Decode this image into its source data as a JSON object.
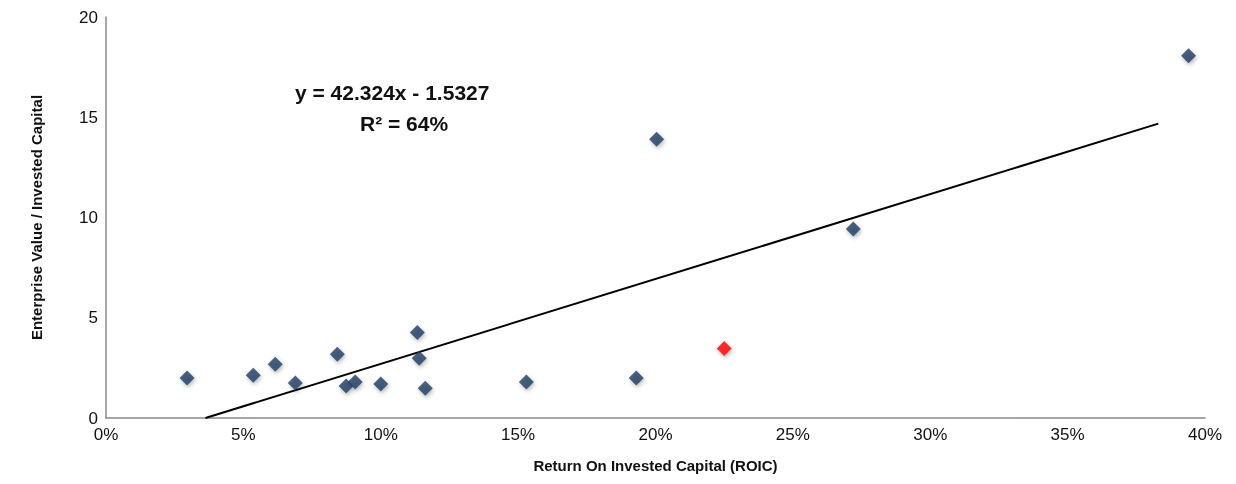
{
  "chart_data": {
    "type": "scatter",
    "xlabel": "Return On Invested Capital (ROIC)",
    "ylabel": "Enterprise Value / Invested Capital",
    "annotations": [
      "y = 42.324x - 1.5327",
      "R² = 64%"
    ],
    "xlim": [
      0,
      0.4
    ],
    "xticks": [
      {
        "value": 0,
        "label": "0%"
      },
      {
        "value": 0.05,
        "label": "5%"
      },
      {
        "value": 0.1,
        "label": "10%"
      },
      {
        "value": 0.15,
        "label": "15%"
      },
      {
        "value": 0.2,
        "label": "20%"
      },
      {
        "value": 0.25,
        "label": "25%"
      },
      {
        "value": 0.3,
        "label": "30%"
      },
      {
        "value": 0.35,
        "label": "35%"
      },
      {
        "value": 0.4,
        "label": "40%"
      }
    ],
    "ylim": [
      0,
      20
    ],
    "yticks": [
      0,
      5,
      10,
      15,
      20
    ],
    "grid": false,
    "marker": "diamond",
    "series": [
      {
        "color": "#1f3b63",
        "x": [
          0.0295,
          0.0536,
          0.0616,
          0.0689,
          0.0842,
          0.0874,
          0.0907,
          0.1,
          0.1133,
          0.114,
          0.1162,
          0.153,
          0.193,
          0.2004,
          0.272,
          0.394
        ],
        "values": [
          1.99,
          2.13,
          2.68,
          1.74,
          3.18,
          1.59,
          1.79,
          1.69,
          4.27,
          2.98,
          1.49,
          1.79,
          1.99,
          13.9,
          9.43,
          18.07
        ]
      },
      {
        "color": "#ff0000",
        "x": [
          0.225
        ],
        "values": [
          3.47
        ]
      },
      {
        "type": "line",
        "color": "#000000",
        "marker": "none",
        "line_style": "solid",
        "x": [
          0.0362,
          0.383
        ],
        "values": [
          0,
          14.68
        ]
      }
    ]
  }
}
